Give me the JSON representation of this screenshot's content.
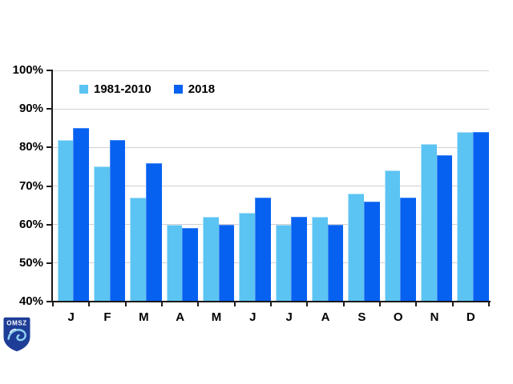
{
  "chart_data": {
    "type": "bar",
    "title": "",
    "xlabel": "",
    "ylabel": "",
    "categories": [
      "J",
      "F",
      "M",
      "A",
      "M",
      "J",
      "J",
      "A",
      "S",
      "O",
      "N",
      "D"
    ],
    "series": [
      {
        "name": "1981-2010",
        "color": "#5CC4F2",
        "edge_color": "#ADE2F9",
        "values": [
          82,
          75,
          67,
          60,
          62,
          63,
          60,
          62,
          68,
          74,
          81,
          84
        ]
      },
      {
        "name": "2018",
        "color": "#0761F0",
        "edge_color": "#4589F4",
        "values": [
          85,
          82,
          76,
          59,
          60,
          67,
          62,
          60,
          66,
          67,
          78,
          84
        ]
      }
    ],
    "ylim": [
      40,
      100
    ],
    "ytick_step": 10,
    "ytick_labels": [
      "40%",
      "50%",
      "60%",
      "70%",
      "80%",
      "90%",
      "100%"
    ],
    "grid": true,
    "legend_position": "top-left-inside"
  },
  "logo": {
    "text": "OMSZ"
  },
  "colors": {
    "axis": "#1a1a1a",
    "gridline": "#d0d0d0",
    "text": "#000000",
    "background": "#ffffff",
    "logo_shield": "#1e3d96",
    "logo_swirl": "#8fd0f2"
  }
}
